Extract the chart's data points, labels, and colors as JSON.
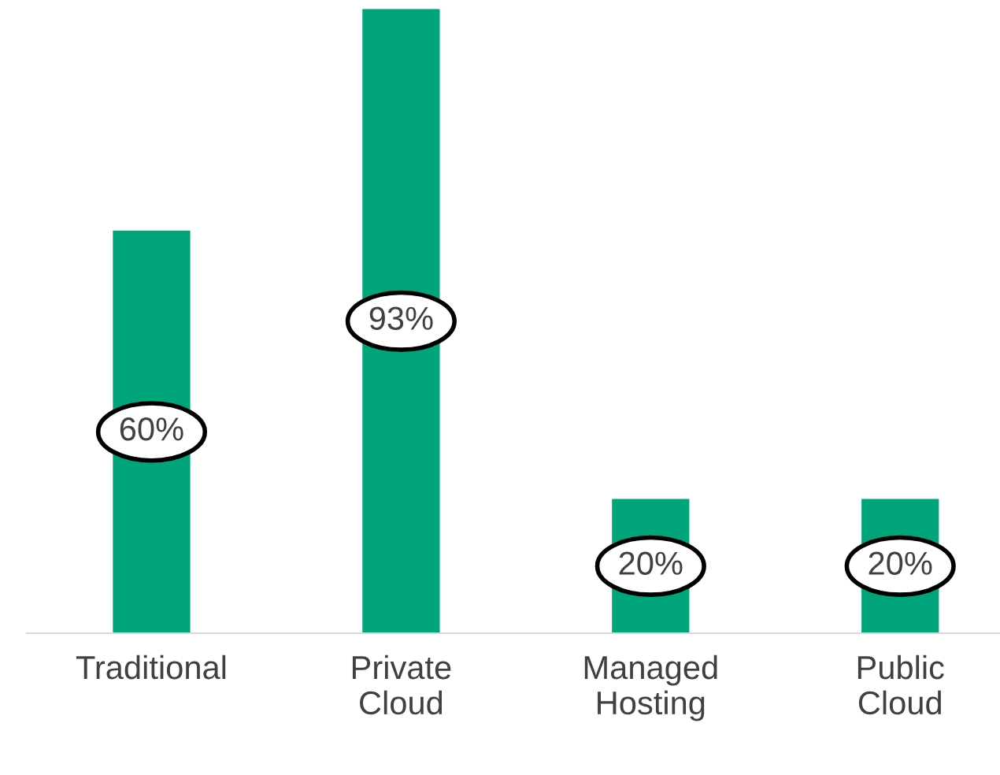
{
  "chart_data": {
    "type": "bar",
    "categories": [
      "Traditional",
      "Private\nCloud",
      "Managed\nHosting",
      "Public\nCloud"
    ],
    "values": [
      60,
      93,
      20,
      20
    ],
    "value_labels": [
      "60%",
      "93%",
      "20%",
      "20%"
    ],
    "color": "#00a57c",
    "grid": false,
    "legend": false
  }
}
